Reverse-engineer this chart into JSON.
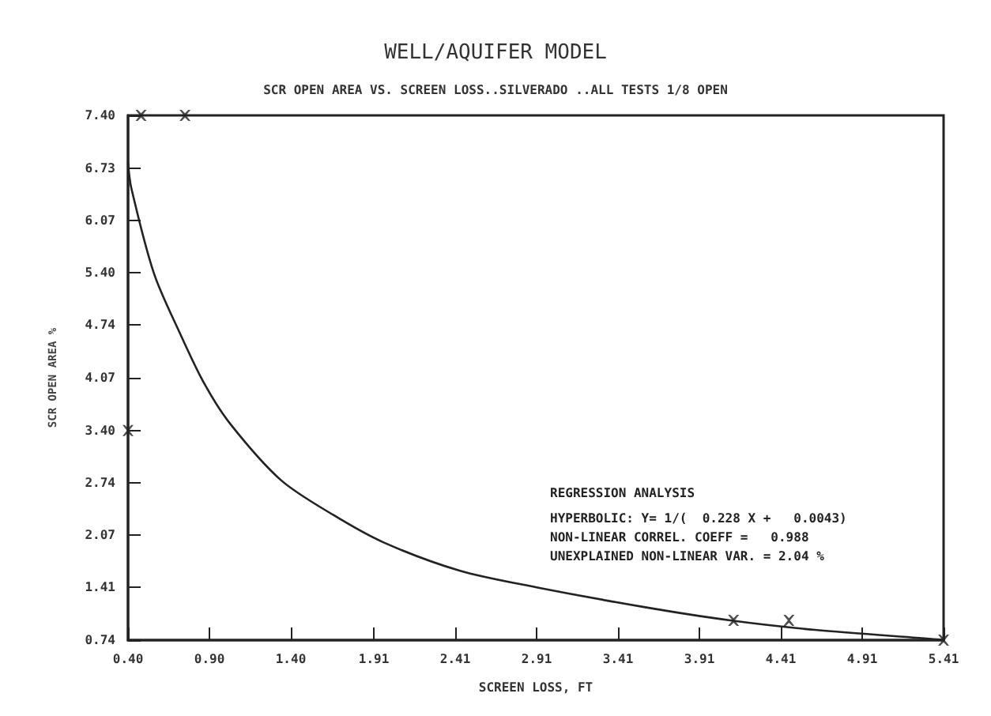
{
  "chart_data": {
    "type": "line",
    "title": "WELL/AQUIFER MODEL",
    "subtitle": "SCR OPEN AREA VS. SCREEN LOSS..SILVERADO ..ALL TESTS 1/8 OPEN",
    "xlabel": "SCREEN LOSS, FT",
    "ylabel": "SCR OPEN AREA %",
    "annotations": [
      "REGRESSION ANALYSIS",
      "HYPERBOLIC: Y= 1/(  0.228 X +   0.0043)",
      "NON-LINEAR CORREL. COEFF =   0.988",
      "UNEXPLAINED NON-LINEAR VAR. = 2.04 %"
    ],
    "xlim": [
      0.4,
      5.41
    ],
    "ylim": [
      0.74,
      7.4
    ],
    "xticks": [
      {
        "value": 0.4,
        "label": "0.40"
      },
      {
        "value": 0.9,
        "label": "0.90"
      },
      {
        "value": 1.4,
        "label": "1.40"
      },
      {
        "value": 1.91,
        "label": "1.91"
      },
      {
        "value": 2.41,
        "label": "2.41"
      },
      {
        "value": 2.91,
        "label": "2.91"
      },
      {
        "value": 3.41,
        "label": "3.41"
      },
      {
        "value": 3.91,
        "label": "3.91"
      },
      {
        "value": 4.41,
        "label": "4.41"
      },
      {
        "value": 4.91,
        "label": "4.91"
      },
      {
        "value": 5.41,
        "label": "5.41"
      }
    ],
    "yticks": [
      {
        "value": 0.74,
        "label": "0.74"
      },
      {
        "value": 1.41,
        "label": "1.41"
      },
      {
        "value": 2.07,
        "label": "2.07"
      },
      {
        "value": 2.74,
        "label": "2.74"
      },
      {
        "value": 3.4,
        "label": "3.40"
      },
      {
        "value": 4.07,
        "label": "4.07"
      },
      {
        "value": 4.74,
        "label": "4.74"
      },
      {
        "value": 5.4,
        "label": "5.40"
      },
      {
        "value": 6.07,
        "label": "6.07"
      },
      {
        "value": 6.73,
        "label": "6.73"
      },
      {
        "value": 7.4,
        "label": "7.40"
      }
    ],
    "grid": false,
    "series": [
      {
        "color": "#222222",
        "marker": "none",
        "line_style": "solid",
        "x": [
          0.4,
          0.42,
          0.56,
          0.72,
          0.87,
          1.03,
          1.34,
          1.66,
          1.97,
          2.44,
          2.91,
          3.57,
          4.1,
          4.62,
          5.37,
          5.41
        ],
        "values": [
          6.8,
          6.48,
          5.39,
          4.63,
          3.99,
          3.48,
          2.77,
          2.33,
          1.98,
          1.62,
          1.41,
          1.16,
          0.99,
          0.87,
          0.75,
          0.74
        ]
      },
      {
        "type": "scatter",
        "color": "#222222",
        "marker": "cross",
        "x": [
          0.48,
          0.75,
          0.4,
          4.12,
          4.46,
          5.41
        ],
        "values": [
          7.4,
          7.4,
          3.4,
          0.99,
          0.99,
          0.74
        ]
      }
    ]
  }
}
